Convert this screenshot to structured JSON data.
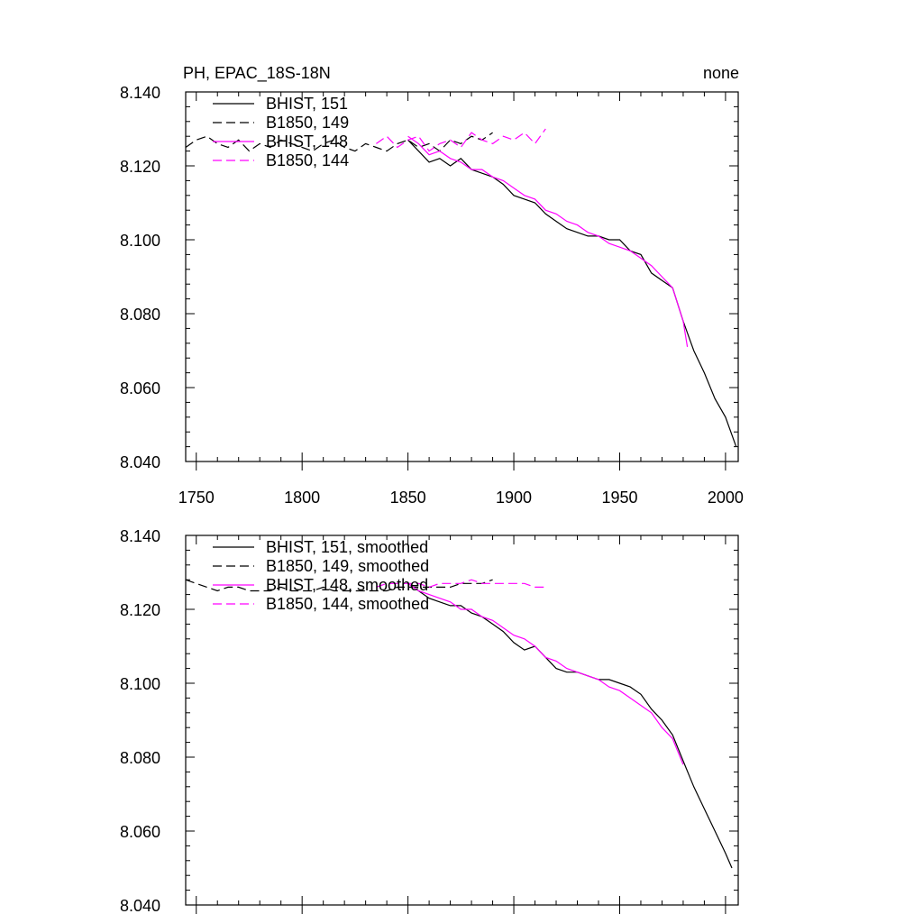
{
  "chart_data": [
    {
      "type": "line",
      "title": "PH, EPAC_18S-18N",
      "title_right": "none",
      "xlim": [
        1745,
        2006
      ],
      "ylim": [
        8.04,
        8.14
      ],
      "xticks": [
        1750,
        1800,
        1850,
        1900,
        1950,
        2000
      ],
      "xtick_labels": [
        "1750",
        "1800",
        "1850",
        "1900",
        "1950",
        "2000"
      ],
      "yticks": [
        8.04,
        8.06,
        8.08,
        8.1,
        8.12,
        8.14
      ],
      "ytick_labels": [
        "8.040",
        "8.060",
        "8.080",
        "8.100",
        "8.120",
        "8.140"
      ],
      "legend_position": "top-left",
      "series": [
        {
          "name": "BHIST, 151",
          "color": "#000000",
          "dash": "solid",
          "x": [
            1850,
            1855,
            1860,
            1865,
            1870,
            1875,
            1880,
            1885,
            1890,
            1895,
            1900,
            1905,
            1910,
            1915,
            1920,
            1925,
            1930,
            1935,
            1940,
            1945,
            1950,
            1955,
            1960,
            1965,
            1970,
            1975,
            1980,
            1985,
            1990,
            1995,
            2000,
            2005
          ],
          "values": [
            8.127,
            8.124,
            8.121,
            8.122,
            8.12,
            8.122,
            8.119,
            8.118,
            8.117,
            8.115,
            8.112,
            8.111,
            8.11,
            8.107,
            8.105,
            8.103,
            8.102,
            8.101,
            8.101,
            8.1,
            8.1,
            8.097,
            8.096,
            8.091,
            8.089,
            8.087,
            8.078,
            8.07,
            8.064,
            8.057,
            8.052,
            8.044
          ]
        },
        {
          "name": "B1850, 149",
          "color": "#000000",
          "dash": "dashed",
          "x": [
            1745,
            1750,
            1755,
            1760,
            1765,
            1770,
            1775,
            1780,
            1785,
            1790,
            1795,
            1800,
            1805,
            1810,
            1815,
            1820,
            1825,
            1830,
            1835,
            1840,
            1845,
            1850,
            1855,
            1860,
            1865,
            1870,
            1875,
            1880,
            1885,
            1890
          ],
          "values": [
            8.125,
            8.127,
            8.128,
            8.126,
            8.125,
            8.127,
            8.124,
            8.126,
            8.125,
            8.127,
            8.126,
            8.125,
            8.124,
            8.126,
            8.127,
            8.125,
            8.124,
            8.126,
            8.125,
            8.124,
            8.126,
            8.127,
            8.125,
            8.126,
            8.124,
            8.127,
            8.126,
            8.128,
            8.127,
            8.129
          ]
        },
        {
          "name": "BHIST, 148",
          "color": "#ff00ff",
          "dash": "solid",
          "x": [
            1850,
            1855,
            1860,
            1865,
            1870,
            1875,
            1880,
            1885,
            1890,
            1895,
            1900,
            1905,
            1910,
            1915,
            1920,
            1925,
            1930,
            1935,
            1940,
            1945,
            1950,
            1955,
            1960,
            1965,
            1970,
            1975,
            1980,
            1982
          ],
          "values": [
            8.128,
            8.126,
            8.123,
            8.124,
            8.122,
            8.121,
            8.119,
            8.119,
            8.117,
            8.116,
            8.114,
            8.112,
            8.111,
            8.108,
            8.107,
            8.105,
            8.104,
            8.102,
            8.101,
            8.099,
            8.098,
            8.097,
            8.095,
            8.093,
            8.09,
            8.087,
            8.078,
            8.071
          ]
        },
        {
          "name": "B1850, 144",
          "color": "#ff00ff",
          "dash": "dashed",
          "x": [
            1835,
            1840,
            1845,
            1850,
            1855,
            1860,
            1865,
            1870,
            1875,
            1880,
            1885,
            1890,
            1895,
            1900,
            1905,
            1910,
            1915
          ],
          "values": [
            8.126,
            8.128,
            8.125,
            8.127,
            8.128,
            8.124,
            8.126,
            8.127,
            8.125,
            8.129,
            8.127,
            8.126,
            8.128,
            8.127,
            8.129,
            8.126,
            8.13
          ]
        }
      ]
    },
    {
      "type": "line",
      "title": "",
      "xlim": [
        1745,
        2006
      ],
      "ylim": [
        8.04,
        8.14
      ],
      "yticks": [
        8.04,
        8.06,
        8.08,
        8.1,
        8.12,
        8.14
      ],
      "ytick_labels": [
        "8.040",
        "8.060",
        "8.080",
        "8.100",
        "8.120",
        "8.140"
      ],
      "legend_position": "top-left",
      "series": [
        {
          "name": "BHIST, 151, smoothed",
          "color": "#000000",
          "dash": "solid",
          "x": [
            1850,
            1855,
            1860,
            1865,
            1870,
            1875,
            1880,
            1885,
            1890,
            1895,
            1900,
            1905,
            1910,
            1915,
            1920,
            1925,
            1930,
            1935,
            1940,
            1945,
            1950,
            1955,
            1960,
            1965,
            1970,
            1975,
            1980,
            1985,
            1990,
            1995,
            2000,
            2003
          ],
          "values": [
            8.127,
            8.125,
            8.123,
            8.122,
            8.121,
            8.121,
            8.119,
            8.118,
            8.116,
            8.114,
            8.111,
            8.109,
            8.11,
            8.107,
            8.104,
            8.103,
            8.103,
            8.102,
            8.101,
            8.101,
            8.1,
            8.099,
            8.097,
            8.093,
            8.09,
            8.086,
            8.079,
            8.072,
            8.066,
            8.06,
            8.054,
            8.05
          ]
        },
        {
          "name": "B1850, 149, smoothed",
          "color": "#000000",
          "dash": "dashed",
          "x": [
            1745,
            1750,
            1755,
            1760,
            1765,
            1770,
            1775,
            1780,
            1785,
            1790,
            1795,
            1800,
            1805,
            1810,
            1815,
            1820,
            1825,
            1830,
            1835,
            1840,
            1845,
            1850,
            1855,
            1860,
            1865,
            1870,
            1875,
            1880,
            1885,
            1890
          ],
          "values": [
            8.128,
            8.127,
            8.126,
            8.125,
            8.126,
            8.126,
            8.125,
            8.125,
            8.125,
            8.126,
            8.125,
            8.125,
            8.125,
            8.126,
            8.125,
            8.125,
            8.125,
            8.125,
            8.125,
            8.125,
            8.126,
            8.126,
            8.126,
            8.126,
            8.126,
            8.126,
            8.127,
            8.127,
            8.127,
            8.128
          ]
        },
        {
          "name": "BHIST, 148, smoothed",
          "color": "#ff00ff",
          "dash": "solid",
          "x": [
            1850,
            1855,
            1860,
            1865,
            1870,
            1875,
            1880,
            1885,
            1890,
            1895,
            1900,
            1905,
            1910,
            1915,
            1920,
            1925,
            1930,
            1935,
            1940,
            1945,
            1950,
            1955,
            1960,
            1965,
            1970,
            1975,
            1980
          ],
          "values": [
            8.127,
            8.125,
            8.124,
            8.123,
            8.122,
            8.12,
            8.12,
            8.118,
            8.117,
            8.115,
            8.113,
            8.112,
            8.11,
            8.107,
            8.106,
            8.104,
            8.103,
            8.102,
            8.101,
            8.099,
            8.098,
            8.096,
            8.094,
            8.092,
            8.088,
            8.085,
            8.078
          ]
        },
        {
          "name": "B1850, 144, smoothed",
          "color": "#ff00ff",
          "dash": "dashed",
          "x": [
            1835,
            1840,
            1845,
            1850,
            1855,
            1860,
            1865,
            1870,
            1875,
            1880,
            1885,
            1890,
            1895,
            1900,
            1905,
            1910,
            1915
          ],
          "values": [
            8.126,
            8.127,
            8.127,
            8.127,
            8.127,
            8.126,
            8.127,
            8.127,
            8.127,
            8.128,
            8.127,
            8.127,
            8.127,
            8.127,
            8.127,
            8.126,
            8.126
          ]
        }
      ]
    }
  ]
}
